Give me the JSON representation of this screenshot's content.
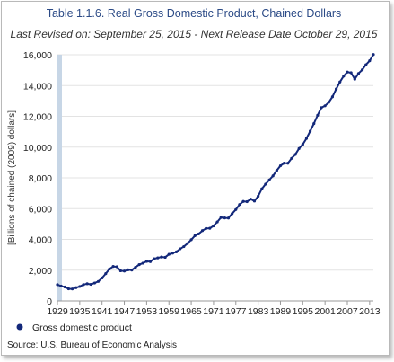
{
  "chart_data": {
    "type": "line",
    "title": "Table 1.1.6. Real Gross Domestic Product, Chained Dollars",
    "subtitle": "Last Revised on: September 25, 2015 - Next Release Date October 29, 2015",
    "ylabel": "[Billions of chained (2009) dollars]",
    "xlabel": "",
    "ylim": [
      0,
      16000
    ],
    "y_ticks": [
      0,
      2000,
      4000,
      6000,
      8000,
      10000,
      12000,
      14000,
      16000
    ],
    "y_tick_labels": [
      "0",
      "2,000",
      "4,000",
      "6,000",
      "8,000",
      "10,000",
      "12,000",
      "14,000",
      "16,000"
    ],
    "x_range": [
      1929,
      2014
    ],
    "x_tick_labels": [
      "1929",
      "1935",
      "1941",
      "1947",
      "1953",
      "1959",
      "1965",
      "1971",
      "1977",
      "1983",
      "1989",
      "1995",
      "2001",
      "2007",
      "2013"
    ],
    "grid": true,
    "legend_position": "bottom-left",
    "series": [
      {
        "name": "Gross domestic product",
        "color": "#13287a",
        "x": [
          1929,
          1930,
          1931,
          1932,
          1933,
          1934,
          1935,
          1936,
          1937,
          1938,
          1939,
          1940,
          1941,
          1942,
          1943,
          1944,
          1945,
          1946,
          1947,
          1948,
          1949,
          1950,
          1951,
          1952,
          1953,
          1954,
          1955,
          1956,
          1957,
          1958,
          1959,
          1960,
          1961,
          1962,
          1963,
          1964,
          1965,
          1966,
          1967,
          1968,
          1969,
          1970,
          1971,
          1972,
          1973,
          1974,
          1975,
          1976,
          1977,
          1978,
          1979,
          1980,
          1981,
          1982,
          1983,
          1984,
          1985,
          1986,
          1987,
          1988,
          1989,
          1990,
          1991,
          1992,
          1993,
          1994,
          1995,
          1996,
          1997,
          1998,
          1999,
          2000,
          2001,
          2002,
          2003,
          2004,
          2005,
          2006,
          2007,
          2008,
          2009,
          2010,
          2011,
          2012,
          2013,
          2014
        ],
        "values": [
          1057,
          966,
          904,
          788,
          778,
          862,
          939,
          1061,
          1115,
          1078,
          1165,
          1267,
          1490,
          1772,
          2074,
          2240,
          2217,
          1960,
          1940,
          2020,
          2008,
          2184,
          2361,
          2456,
          2571,
          2556,
          2739,
          2797,
          2856,
          2835,
          3032,
          3108,
          3188,
          3384,
          3530,
          3734,
          3977,
          4239,
          4355,
          4569,
          4712,
          4722,
          4877,
          5134,
          5424,
          5396,
          5385,
          5675,
          5938,
          6267,
          6467,
          6451,
          6618,
          6492,
          6804,
          7286,
          7594,
          7861,
          8133,
          8475,
          8786,
          8955,
          8948,
          9267,
          9521,
          9906,
          10175,
          10561,
          11035,
          11526,
          12066,
          12560,
          12683,
          12909,
          13271,
          13774,
          14235,
          14615,
          14877,
          14834,
          14418,
          14784,
          15021,
          15355,
          15612,
          16013
        ]
      }
    ],
    "legend_label": "Gross domestic product",
    "source": "Source: U.S. Bureau of Economic  Analysis"
  }
}
